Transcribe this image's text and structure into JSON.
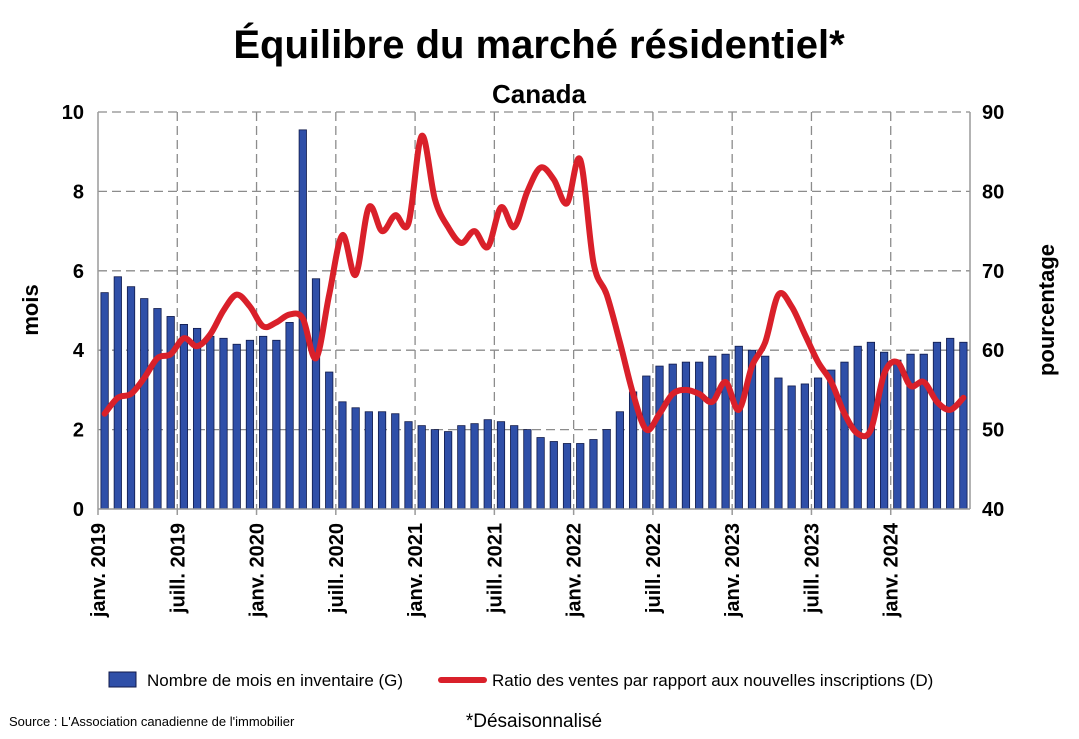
{
  "chart_data": {
    "type": "bar",
    "title": "Équilibre du marché résidentiel*",
    "subtitle": "Canada",
    "ylabel_left": "mois",
    "ylabel_right": "pourcentage",
    "ylim_left": [
      0,
      10
    ],
    "ylim_right": [
      40,
      90
    ],
    "yticks_left": [
      "0",
      "2",
      "4",
      "6",
      "8",
      "10"
    ],
    "yticks_right": [
      "40",
      "50",
      "60",
      "70",
      "80",
      "90"
    ],
    "x_tick_labels": [
      "janv. 2019",
      "juill. 2019",
      "janv. 2020",
      "juill. 2020",
      "janv. 2021",
      "juill. 2021",
      "janv. 2022",
      "juill. 2022",
      "janv. 2023",
      "juill. 2023",
      "janv. 2024"
    ],
    "grid": true,
    "legend_position": "bottom",
    "series": [
      {
        "name": "Nombre de mois en inventaire (G)",
        "type": "bar",
        "axis": "left",
        "color": "#2f4fa8",
        "values": [
          5.45,
          5.85,
          5.6,
          5.3,
          5.05,
          4.85,
          4.65,
          4.55,
          4.35,
          4.3,
          4.15,
          4.25,
          4.35,
          4.25,
          4.7,
          9.55,
          5.8,
          3.45,
          2.7,
          2.55,
          2.45,
          2.45,
          2.4,
          2.2,
          2.1,
          2.0,
          1.95,
          2.1,
          2.15,
          2.25,
          2.2,
          2.1,
          2.0,
          1.8,
          1.7,
          1.65,
          1.65,
          1.75,
          2.0,
          2.45,
          2.95,
          3.35,
          3.6,
          3.65,
          3.7,
          3.7,
          3.85,
          3.9,
          4.1,
          4.0,
          3.85,
          3.3,
          3.1,
          3.15,
          3.3,
          3.5,
          3.7,
          4.1,
          4.2,
          3.95,
          3.75,
          3.9,
          3.9,
          4.2,
          4.3,
          4.2
        ]
      },
      {
        "name": "Ratio des ventes par rapport aux nouvelles inscriptions (D)",
        "type": "line",
        "axis": "right",
        "color": "#d9202a",
        "values": [
          52,
          54,
          54.5,
          56.5,
          59,
          59.5,
          61.5,
          60.5,
          62,
          65,
          67,
          65.5,
          63,
          63.5,
          64.5,
          64,
          59,
          67,
          74.5,
          69.5,
          78,
          75,
          77,
          76,
          87,
          79,
          75.5,
          73.5,
          75,
          73,
          78,
          75.5,
          80,
          83,
          81.5,
          78.5,
          84,
          71,
          67,
          61,
          54.5,
          50,
          52,
          54.5,
          55,
          54.5,
          53.5,
          56,
          52.5,
          58,
          61,
          67,
          65.5,
          62,
          58.5,
          56,
          52,
          49.5,
          50,
          57,
          58.5,
          55.5,
          56,
          53.5,
          52.5,
          54
        ]
      }
    ]
  },
  "legend": {
    "bar_label": "Nombre de mois en inventaire (G)",
    "line_label": "Ratio des ventes par rapport aux nouvelles inscriptions (D)"
  },
  "footer": {
    "source": "Source : L'Association canadienne de l'immobilier",
    "note": "*Désaisonnalisé"
  }
}
